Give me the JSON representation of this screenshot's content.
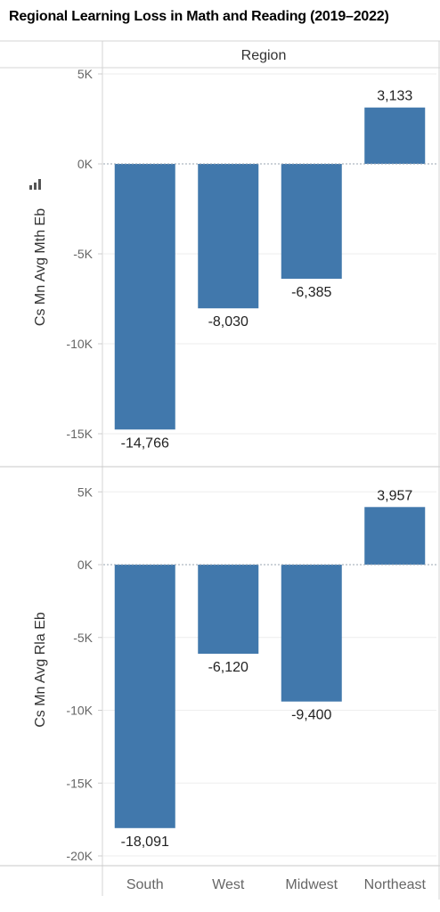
{
  "title": "Regional Learning Loss in Math and Reading (2019–2022)",
  "chart_data": {
    "type": "bar",
    "column_header": "Region",
    "categories": [
      "South",
      "West",
      "Midwest",
      "Northeast"
    ],
    "bar_color": "#4178ac",
    "panels": [
      {
        "ylabel": "Cs Mn Avg Mth Eb",
        "ylim": [
          -16000,
          5000
        ],
        "ticks": [
          5000,
          0,
          -5000,
          -10000,
          -15000
        ],
        "tick_labels": [
          "5K",
          "0K",
          "-5K",
          "-10K",
          "-15K"
        ],
        "values": [
          -14766,
          -8030,
          -6385,
          3133
        ],
        "data_labels": [
          "-14,766",
          "-8,030",
          "-6,385",
          "3,133"
        ]
      },
      {
        "ylabel": "Cs Mn Avg Rla Eb",
        "ylim": [
          -20000,
          5000
        ],
        "ticks": [
          5000,
          0,
          -5000,
          -10000,
          -15000,
          -20000
        ],
        "tick_labels": [
          "5K",
          "0K",
          "-5K",
          "-10K",
          "-15K",
          "-20K"
        ],
        "values": [
          -18091,
          -6120,
          -9400,
          3957
        ],
        "data_labels": [
          "-18,091",
          "-6,120",
          "-9,400",
          "3,957"
        ]
      }
    ],
    "grid": true,
    "legend": "none"
  }
}
